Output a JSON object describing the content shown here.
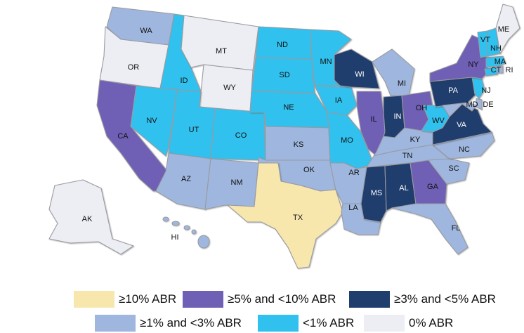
{
  "colors": {
    "c10": "#f7e7ad",
    "c5": "#6f5fb5",
    "c3": "#1f3d6d",
    "c1": "#9fb7de",
    "lt1": "#31c1ee",
    "zero": "#eceef3"
  },
  "legend": [
    {
      "key": "c10",
      "label": "≥10% ABR"
    },
    {
      "key": "c5",
      "label": "≥5% and <10% ABR"
    },
    {
      "key": "c3",
      "label": "≥3% and <5% ABR"
    },
    {
      "key": "c1",
      "label": "≥1% and <3% ABR"
    },
    {
      "key": "lt1",
      "label": "<1% ABR"
    },
    {
      "key": "zero",
      "label": "0% ABR"
    }
  ],
  "states": {
    "WA": {
      "label": "WA",
      "cat": "c1"
    },
    "OR": {
      "label": "OR",
      "cat": "zero"
    },
    "CA": {
      "label": "CA",
      "cat": "c5"
    },
    "ID": {
      "label": "ID",
      "cat": "lt1"
    },
    "NV": {
      "label": "NV",
      "cat": "lt1"
    },
    "MT": {
      "label": "MT",
      "cat": "zero"
    },
    "WY": {
      "label": "WY",
      "cat": "zero"
    },
    "UT": {
      "label": "UT",
      "cat": "lt1"
    },
    "CO": {
      "label": "CO",
      "cat": "lt1"
    },
    "AZ": {
      "label": "AZ",
      "cat": "c1"
    },
    "NM": {
      "label": "NM",
      "cat": "c1"
    },
    "ND": {
      "label": "ND",
      "cat": "lt1"
    },
    "SD": {
      "label": "SD",
      "cat": "lt1"
    },
    "NE": {
      "label": "NE",
      "cat": "lt1"
    },
    "KS": {
      "label": "KS",
      "cat": "c1"
    },
    "OK": {
      "label": "OK",
      "cat": "c1"
    },
    "TX": {
      "label": "TX",
      "cat": "c10"
    },
    "MN": {
      "label": "MN",
      "cat": "lt1"
    },
    "IA": {
      "label": "IA",
      "cat": "lt1"
    },
    "MO": {
      "label": "MO",
      "cat": "lt1"
    },
    "AR": {
      "label": "AR",
      "cat": "c1"
    },
    "LA": {
      "label": "LA",
      "cat": "c1"
    },
    "WI": {
      "label": "WI",
      "cat": "c3"
    },
    "IL": {
      "label": "IL",
      "cat": "c5"
    },
    "MI": {
      "label": "MI",
      "cat": "c1"
    },
    "IN": {
      "label": "IN",
      "cat": "c3"
    },
    "OH": {
      "label": "OH",
      "cat": "c5"
    },
    "KY": {
      "label": "KY",
      "cat": "c1"
    },
    "TN": {
      "label": "TN",
      "cat": "c1"
    },
    "MS": {
      "label": "MS",
      "cat": "c3"
    },
    "AL": {
      "label": "AL",
      "cat": "c3"
    },
    "GA": {
      "label": "GA",
      "cat": "c5"
    },
    "FL": {
      "label": "FL",
      "cat": "c1"
    },
    "SC": {
      "label": "SC",
      "cat": "c1"
    },
    "NC": {
      "label": "NC",
      "cat": "c1"
    },
    "VA": {
      "label": "VA",
      "cat": "c3"
    },
    "WV": {
      "label": "WV",
      "cat": "lt1"
    },
    "PA": {
      "label": "PA",
      "cat": "c3"
    },
    "NY": {
      "label": "NY",
      "cat": "c5"
    },
    "MD": {
      "label": "MD",
      "cat": "c1"
    },
    "DE": {
      "label": "DE",
      "cat": "c1"
    },
    "NJ": {
      "label": "NJ",
      "cat": "lt1"
    },
    "CT": {
      "label": "CT",
      "cat": "lt1"
    },
    "RI": {
      "label": "RI",
      "cat": "c1"
    },
    "MA": {
      "label": "MA",
      "cat": "lt1"
    },
    "VT": {
      "label": "VT",
      "cat": "lt1"
    },
    "NH": {
      "label": "NH",
      "cat": "lt1"
    },
    "ME": {
      "label": "ME",
      "cat": "zero"
    },
    "AK": {
      "label": "AK",
      "cat": "zero"
    },
    "HI": {
      "label": "HI",
      "cat": "c1"
    }
  }
}
